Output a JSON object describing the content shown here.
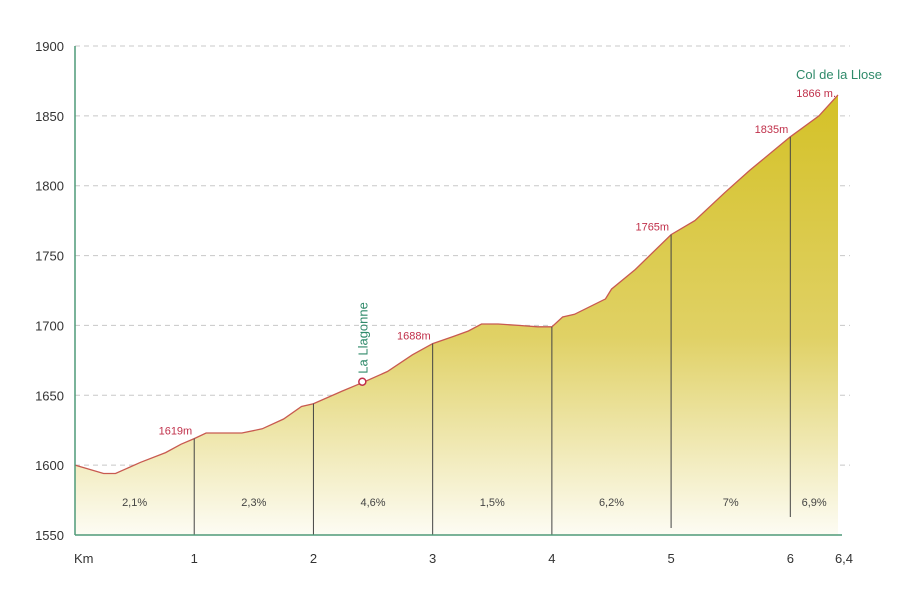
{
  "chart_data": {
    "type": "area",
    "title": "",
    "xlabel": "Km",
    "ylabel": "",
    "xlim": [
      0,
      6.4
    ],
    "ylim": [
      1550,
      1900
    ],
    "grid": true,
    "y_ticks": [
      "1550",
      "1600",
      "1650",
      "1700",
      "1750",
      "1800",
      "1850",
      "1900"
    ],
    "x_ticks": [
      "Km",
      "1",
      "2",
      "3",
      "4",
      "5",
      "6",
      "6,4"
    ],
    "x_tick_values": [
      0,
      1,
      2,
      3,
      4,
      5,
      6,
      6.4
    ],
    "profile": {
      "x": [
        0,
        0.08,
        0.24,
        0.34,
        0.55,
        0.76,
        0.89,
        1.0,
        1.1,
        1.23,
        1.4,
        1.57,
        1.75,
        1.9,
        2.0,
        2.24,
        2.41,
        2.62,
        2.83,
        3.0,
        3.17,
        3.3,
        3.41,
        3.55,
        3.72,
        3.88,
        4.0,
        4.09,
        4.19,
        4.45,
        4.5,
        4.7,
        5.0,
        5.2,
        5.45,
        5.66,
        6.0,
        6.24,
        6.4
      ],
      "y": [
        1600,
        1598,
        1594,
        1594,
        1602,
        1609,
        1615,
        1619,
        1623,
        1623,
        1623,
        1626,
        1633,
        1642,
        1644,
        1653,
        1659,
        1667,
        1679,
        1687,
        1692,
        1696,
        1701,
        1701,
        1700,
        1699,
        1699,
        1706,
        1708,
        1719,
        1726,
        1740,
        1765,
        1775,
        1795,
        1811,
        1835,
        1850,
        1865
      ]
    },
    "segments": [
      {
        "from": 0,
        "to": 1,
        "grade": "2,1%"
      },
      {
        "from": 1,
        "to": 2,
        "grade": "2,3%"
      },
      {
        "from": 2,
        "to": 3,
        "grade": "4,6%"
      },
      {
        "from": 3,
        "to": 4,
        "grade": "1,5%"
      },
      {
        "from": 4,
        "to": 5,
        "grade": "6,2%"
      },
      {
        "from": 5,
        "to": 6,
        "grade": "7%"
      },
      {
        "from": 6,
        "to": 6.4,
        "grade": "6,9%"
      }
    ],
    "elevation_labels": [
      {
        "km": 1,
        "elev": 1619,
        "text": "1619m"
      },
      {
        "km": 3,
        "elev": 1688,
        "text": "1688m"
      },
      {
        "km": 5,
        "elev": 1765,
        "text": "1765m"
      },
      {
        "km": 6,
        "elev": 1835,
        "text": "1835m"
      },
      {
        "km": 6.4,
        "elev": 1866,
        "text": "1866 m."
      }
    ],
    "places": [
      {
        "km": 2.41,
        "elev": 1659,
        "name": "La Llagonne",
        "marker": true
      },
      {
        "km": 6.4,
        "elev": 1866,
        "name": "Col de la Llose",
        "marker": false
      }
    ],
    "colors": {
      "fill_top": "#d4c127",
      "fill_bottom": "#fdfcf4",
      "line": "#c85a50",
      "axis": "#4f9a78",
      "label": "#c0304a",
      "place": "#2f8a6a"
    }
  }
}
